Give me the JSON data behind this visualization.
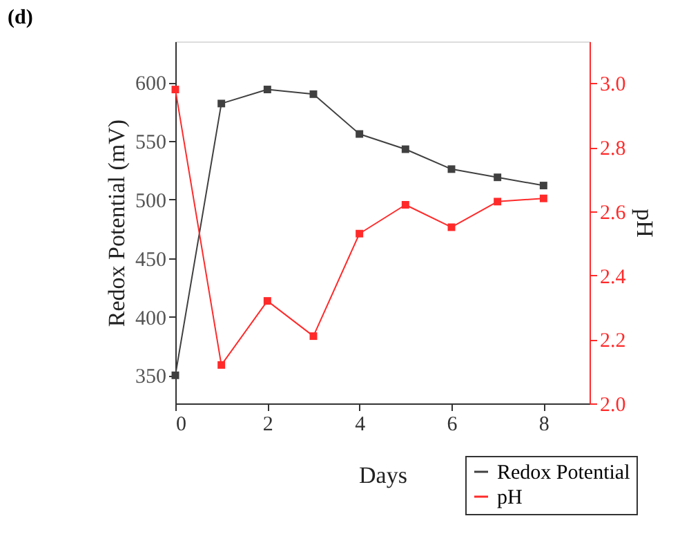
{
  "chart_data": {
    "type": "line",
    "title": "(d)",
    "xlabel": "Days",
    "ylabel": "Redox Potential (mV)",
    "y2label": "pH",
    "x": [
      0,
      1,
      2,
      3,
      4,
      5,
      6,
      7,
      8
    ],
    "series": [
      {
        "name": "Redox Potential",
        "color": "#404040",
        "values": [
          350,
          582,
          594,
          590,
          556,
          543,
          526,
          519,
          512
        ]
      },
      {
        "name": "pH",
        "color": "#ff2a2a",
        "axis": "y2",
        "values": [
          2.98,
          2.12,
          2.32,
          2.21,
          2.53,
          2.62,
          2.55,
          2.63,
          2.64
        ]
      }
    ],
    "xlim": [
      0,
      9
    ],
    "xticks": [
      0,
      2,
      4,
      6,
      8
    ],
    "ylim": [
      326,
      635
    ],
    "yticks": [
      350,
      400,
      450,
      500,
      550,
      600
    ],
    "y2lim": [
      2.0,
      3.13
    ],
    "y2ticks": [
      {
        "value": 2.0,
        "label": "2.0"
      },
      {
        "value": 2.2,
        "label": "2.2"
      },
      {
        "value": 2.4,
        "label": "2.4"
      },
      {
        "value": 2.6,
        "label": "2.6"
      },
      {
        "value": 2.8,
        "label": "2.8"
      },
      {
        "value": 3.0,
        "label": "3.0"
      }
    ],
    "grid": false,
    "legend": "bottom right",
    "marker": "square",
    "line_style": "solid"
  }
}
